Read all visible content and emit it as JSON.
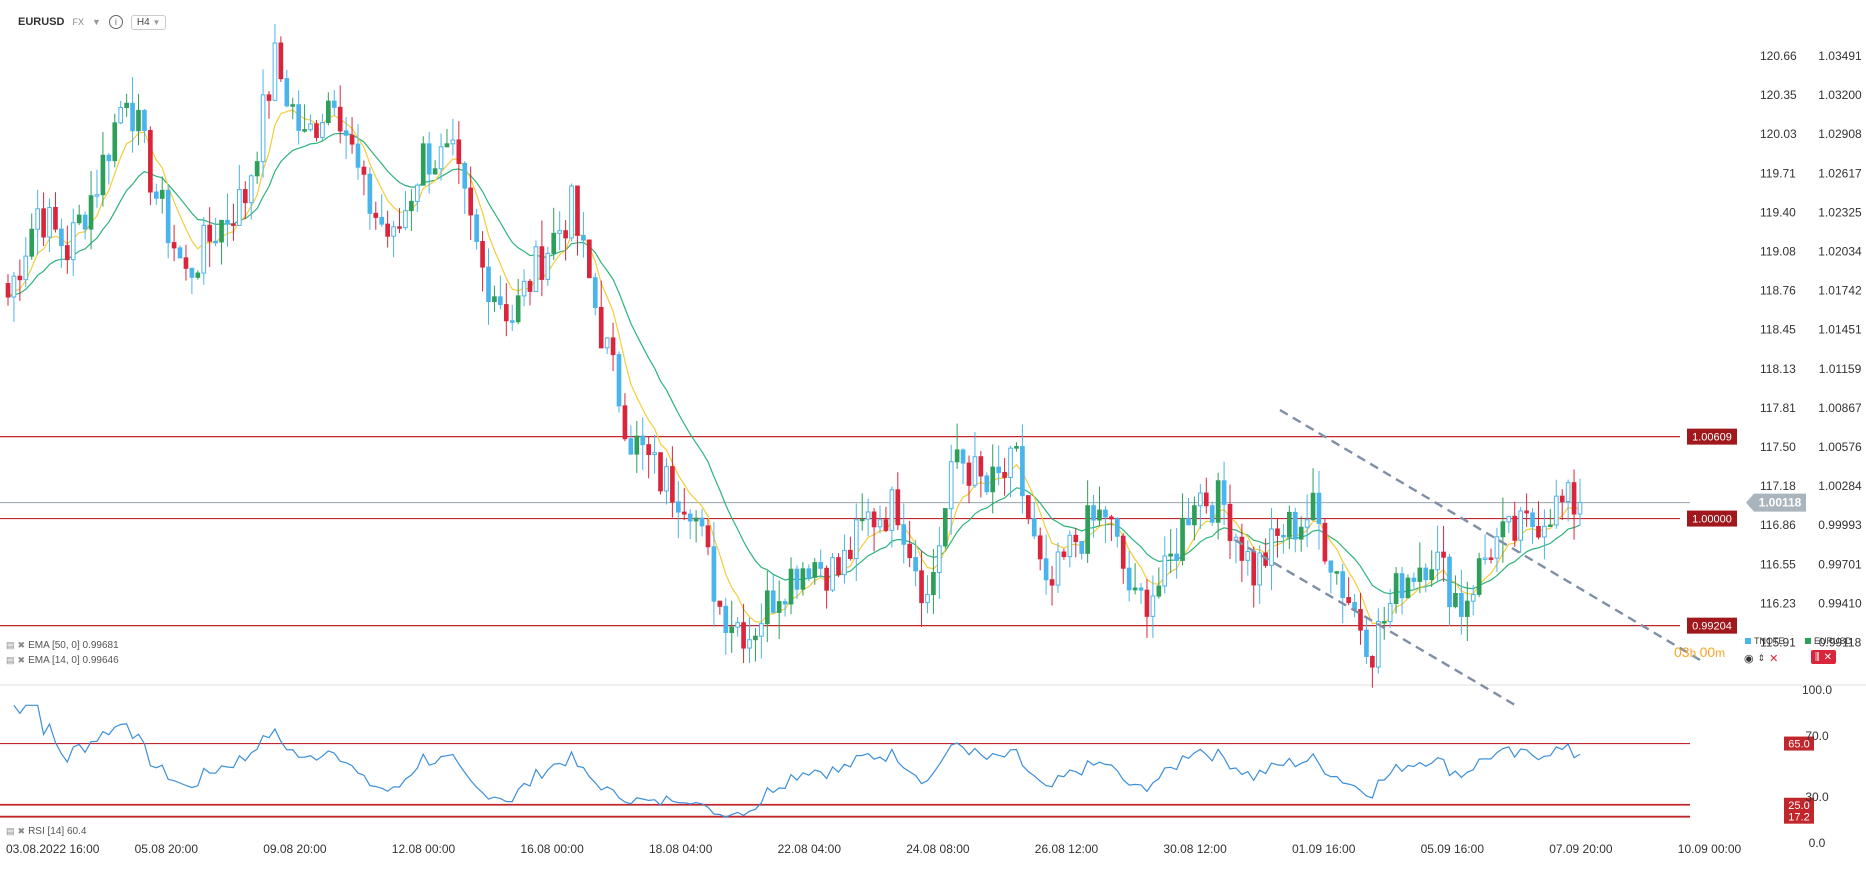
{
  "header": {
    "symbol": "EURUSD",
    "market": "FX",
    "timeframe": "H4"
  },
  "indicators": {
    "ema50": "EMA [50, 0] 0.99681",
    "ema14": "EMA [14, 0] 0.99646",
    "rsi": "RSI [14] 60.4"
  },
  "countdown": {
    "hours": "03",
    "h": "h ",
    "minutes": "00",
    "m": "m"
  },
  "compare": {
    "tnote": "TNOTE",
    "eurusd": "EURUSD"
  },
  "chart_data": {
    "type": "candlestick",
    "symbol": "EURUSD",
    "timeframe": "H4",
    "x_labels": [
      "03.08.2022  16:00",
      "05.08  20:00",
      "09.08  20:00",
      "12.08  00:00",
      "16.08  00:00",
      "18.08  04:00",
      "22.08  04:00",
      "24.08  08:00",
      "26.08  12:00",
      "30.08  12:00",
      "01.09  16:00",
      "05.09  16:00",
      "07.09  20:00",
      "10.09  00:00"
    ],
    "y_labels_tnote": [
      "120.66",
      "120.35",
      "120.03",
      "119.71",
      "119.40",
      "119.08",
      "118.76",
      "118.45",
      "118.13",
      "117.81",
      "117.50",
      "117.18",
      "116.86",
      "116.55",
      "116.23",
      "115.91"
    ],
    "y_labels_eurusd": [
      "1.03491",
      "1.03200",
      "1.02908",
      "1.02617",
      "1.02325",
      "1.02034",
      "1.01742",
      "1.01451",
      "1.01159",
      "1.00867",
      "1.00576",
      "1.00284",
      "0.99993",
      "0.99701",
      "0.99410",
      "0.99118"
    ],
    "price_range": [
      0.988,
      1.0378
    ],
    "anchor_closes": [
      1.0165,
      1.023,
      1.02,
      1.025,
      1.032,
      1.024,
      1.018,
      1.0215,
      1.024,
      1.034,
      1.028,
      1.032,
      1.024,
      1.0205,
      1.027,
      1.0265,
      1.0185,
      1.015,
      1.0195,
      1.023,
      1.014,
      1.006,
      1.003,
      1.0015,
      0.9935,
      0.9915,
      0.995,
      0.997,
      0.996,
      1.0,
      1.001,
      0.994,
      1.005,
      1.002,
      1.004,
      0.994,
      0.9985,
      1.0005,
      0.9935,
      0.9955,
      1.002,
      1.001,
      0.996,
      0.999,
      1.0005,
      0.995,
      0.9905,
      0.9955,
      0.9975,
      0.9935,
      0.998,
      0.999,
      1.0008,
      1.0012
    ],
    "bars_per_segment": 5,
    "horizontal_levels": [
      {
        "value": 1.00609,
        "label": "1.00609"
      },
      {
        "value": 1.0,
        "label": "1.00000"
      },
      {
        "value": 0.99204,
        "label": "0.99204"
      }
    ],
    "current_price": {
      "value": 1.00118,
      "label": "1.00118"
    },
    "ema50_last": 0.99681,
    "ema14_last": 0.99646,
    "channel": "descending channel from 30.08 to 07.09",
    "rsi": {
      "period": 14,
      "last": 60.4,
      "levels": [
        {
          "value": 65.0,
          "label": "65.0"
        },
        {
          "value": 25.0,
          "label": "25.0"
        },
        {
          "value": 17.2,
          "label": "17.2"
        }
      ],
      "axis_labels": [
        "100.0",
        "70.0",
        "30.0",
        "0.0"
      ],
      "range": [
        0,
        100
      ]
    }
  },
  "colors": {
    "bull": "#2e9e5b",
    "bear": "#d9263c",
    "tnote": "#4ab4ec",
    "ema50": "#2db37a",
    "ema14": "#f5cc3a",
    "level": "#c0262b",
    "level_label_bg": "#a1181c",
    "rsi_line": "#3c8fd9",
    "countdown": "#f4a628",
    "price_tag": "#a9b4bd"
  }
}
